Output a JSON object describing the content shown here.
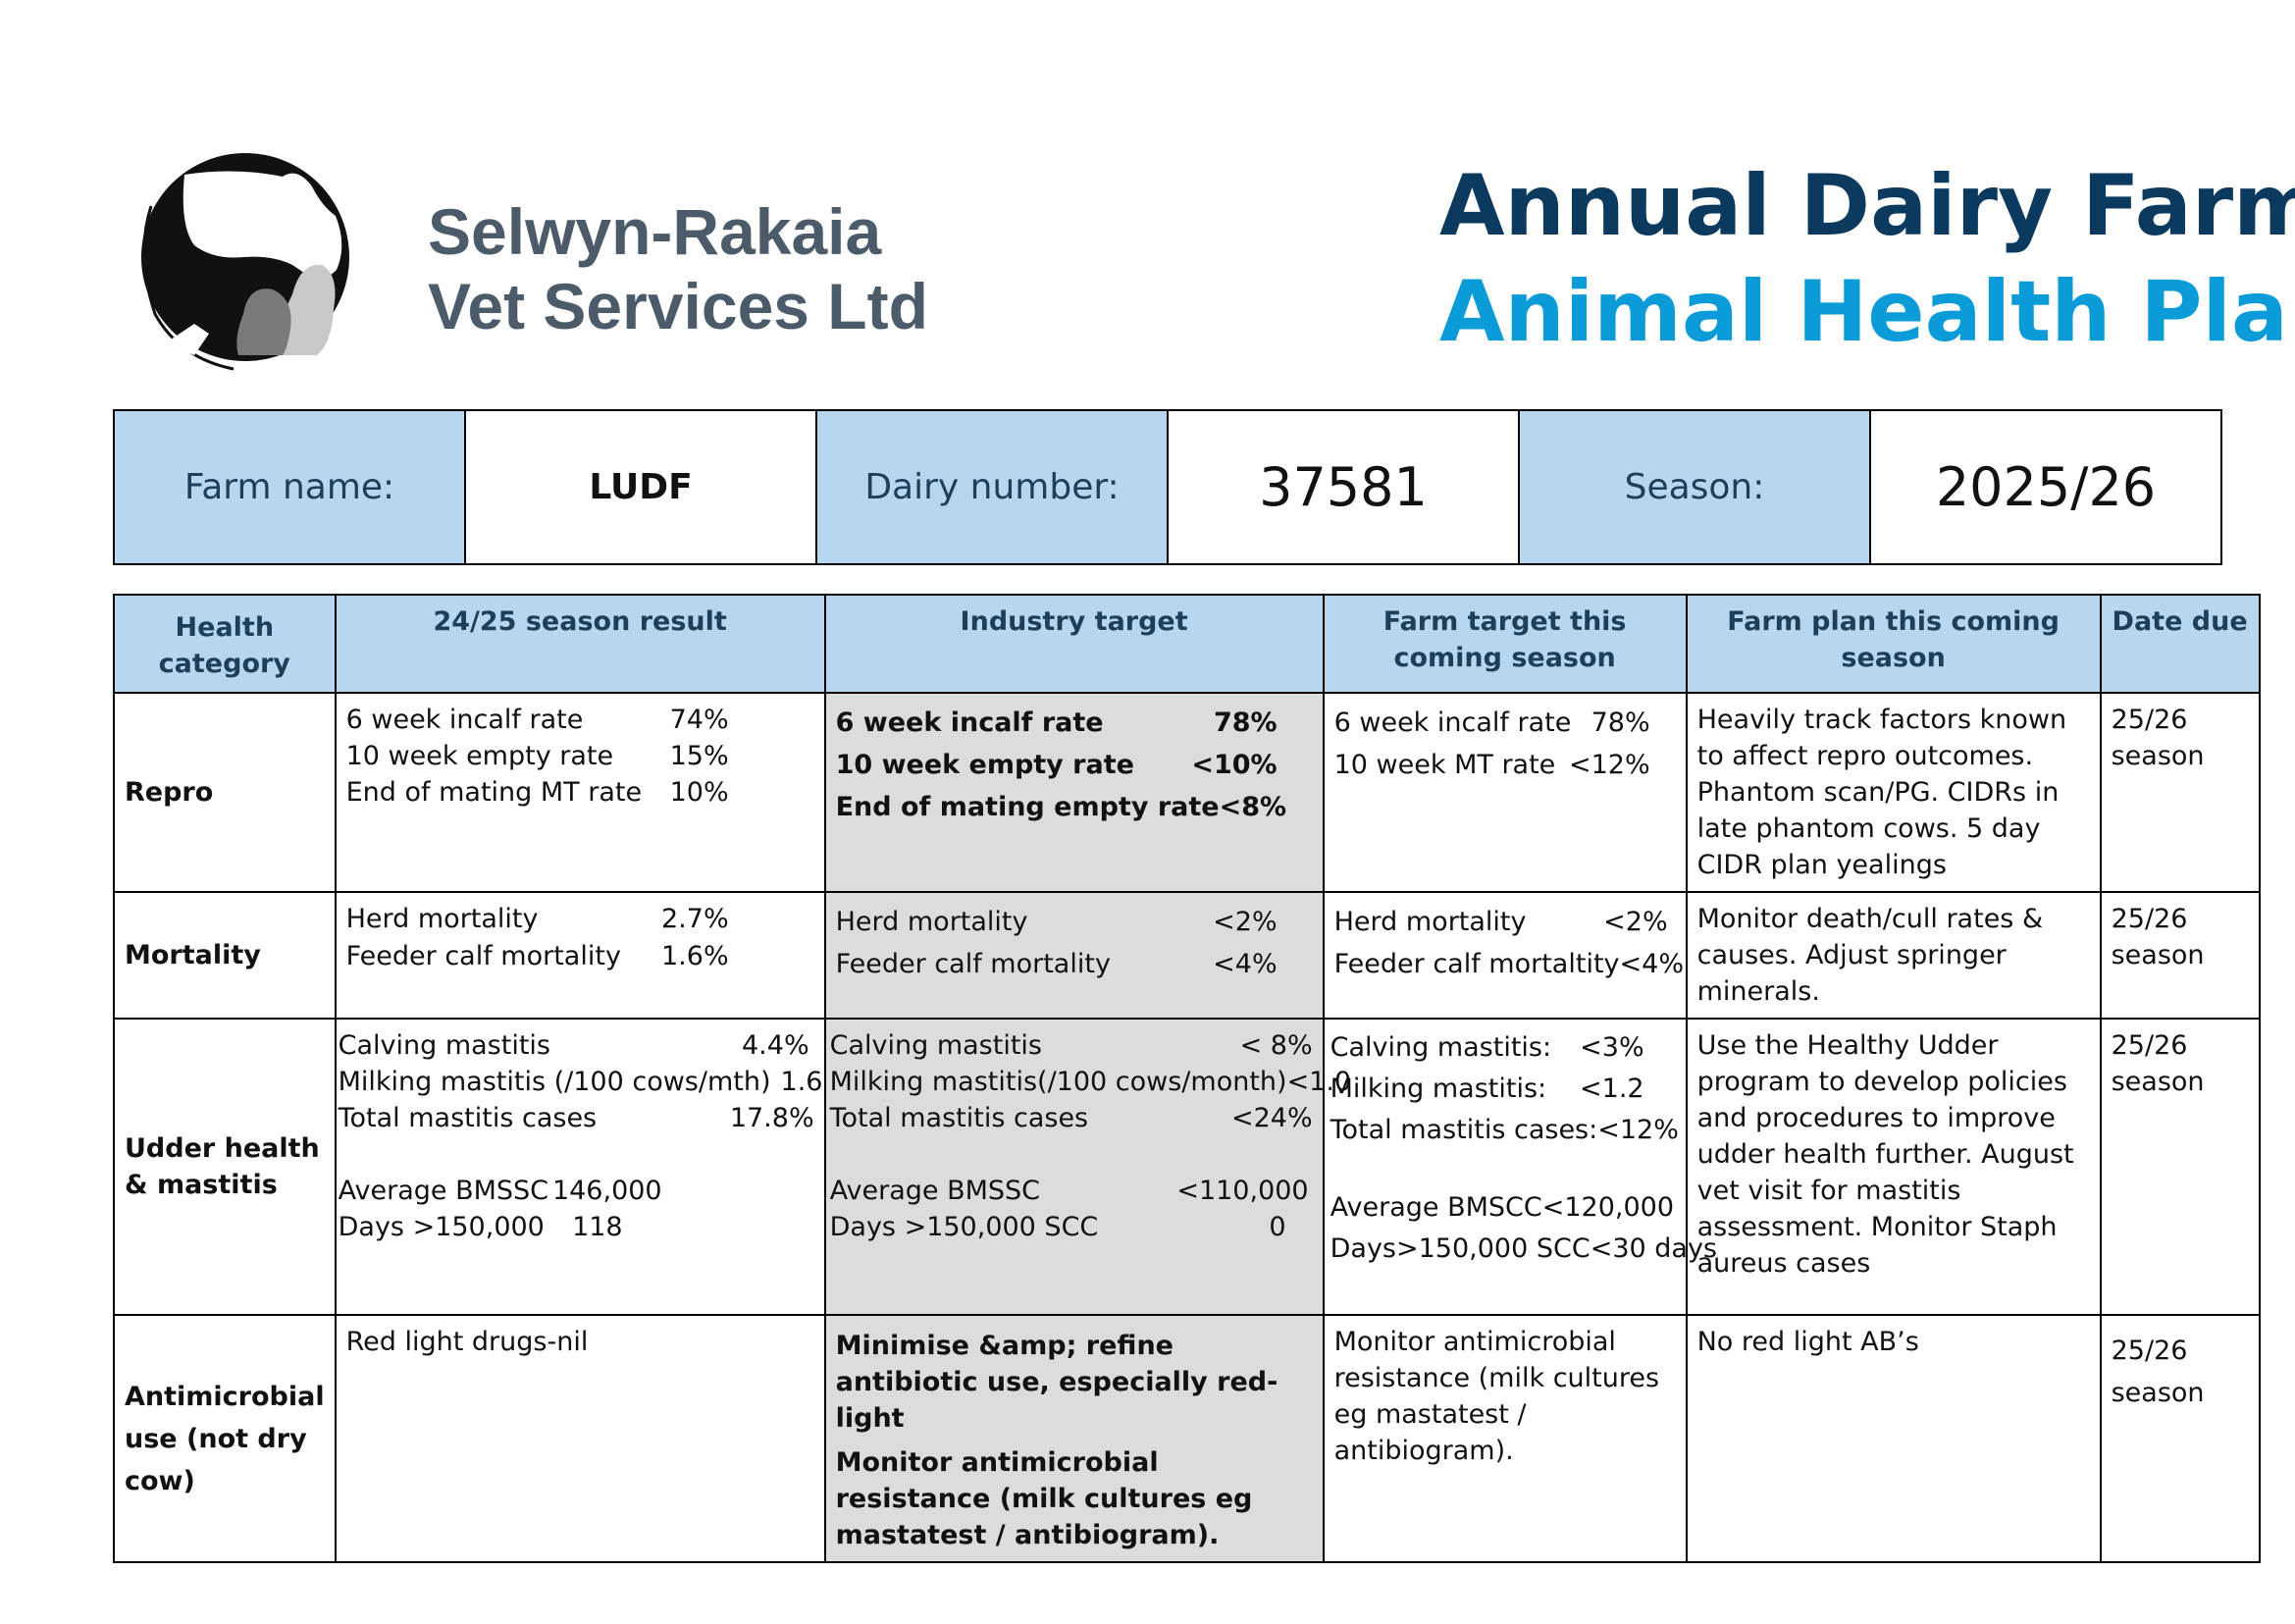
{
  "header": {
    "company_line1": "Selwyn-Rakaia",
    "company_line2": "Vet Services Ltd",
    "title_line1": "Annual Dairy Farm",
    "title_line2": "Animal Health Plan"
  },
  "farm_info": {
    "farm_name_label": "Farm name:",
    "farm_name": "LUDF",
    "dairy_number_label": "Dairy number:",
    "dairy_number": "37581",
    "season_label": "Season:",
    "season": "2025/26"
  },
  "table": {
    "headers": [
      "Health category",
      "24/25 season result",
      "Industry target",
      "Farm target this coming season",
      "Farm plan this coming season",
      "Date due"
    ],
    "rows": [
      {
        "category": "Repro",
        "result": [
          {
            "label": "6 week incalf rate",
            "value": "74%"
          },
          {
            "label": "10 week empty rate",
            "value": "15%"
          },
          {
            "label": "End of mating MT rate",
            "value": "10%"
          }
        ],
        "industry": [
          {
            "label": "6 week incalf rate",
            "value": "78%"
          },
          {
            "label": "10 week empty rate",
            "value": "<10%"
          },
          {
            "label": "End of mating empty rate",
            "value": "<8%"
          }
        ],
        "farm_target": [
          {
            "label": "6 week incalf rate",
            "value": "78%"
          },
          {
            "label": "10 week MT rate",
            "value": "<12%"
          }
        ],
        "plan": "Heavily track factors known to affect repro outcomes. Phantom scan/PG. CIDRs in late phantom cows. 5 day CIDR plan yealings",
        "date_due": "25/26 season"
      },
      {
        "category": "Mortality",
        "result": [
          {
            "label": "Herd mortality",
            "value": "2.7%"
          },
          {
            "label": "Feeder calf mortality",
            "value": "1.6%"
          }
        ],
        "industry": [
          {
            "label": "Herd mortality",
            "value": "<2%"
          },
          {
            "label": "Feeder calf mortality",
            "value": "<4%"
          }
        ],
        "farm_target": [
          {
            "label": "Herd mortality",
            "value": "<2%"
          },
          {
            "label": "Feeder calf mortaltity",
            "value": "<4%"
          }
        ],
        "plan": "Monitor death/cull rates & causes. Adjust springer minerals.",
        "date_due": "25/26 season"
      },
      {
        "category": "Udder health & mastitis",
        "result": [
          {
            "label": "Calving mastitis",
            "value": "4.4%"
          },
          {
            "label": "Milking mastitis (/100 cows/mth)",
            "value": "1.6"
          },
          {
            "label": "Total mastitis cases",
            "value": "17.8%"
          },
          {
            "label": "Average BMSSC",
            "value": "146,000"
          },
          {
            "label": "Days >150,000",
            "value": "118"
          }
        ],
        "industry": [
          {
            "label": "Calving mastitis",
            "value": "< 8%"
          },
          {
            "label": "Milking mastitis(/100 cows/month)",
            "value": "<1.0"
          },
          {
            "label": "Total mastitis cases",
            "value": "<24%"
          },
          {
            "label": "Average BMSSC",
            "value": "<110,000"
          },
          {
            "label": "Days >150,000 SCC",
            "value": "0"
          }
        ],
        "farm_target": [
          {
            "label": "Calving mastitis:",
            "value": "<3%"
          },
          {
            "label": "Milking mastitis:",
            "value": "<1.2"
          },
          {
            "label": "Total mastitis cases:",
            "value": "<12%"
          },
          {
            "label": "Average BMSCC",
            "value": "<120,000"
          },
          {
            "label": "Days>150,000 SCC",
            "value": "<30 days"
          }
        ],
        "plan": "Use the Healthy Udder program to develop policies and procedures to improve udder health further. August vet visit for mastitis assessment. Monitor Staph aureus cases",
        "date_due": "25/26 season"
      },
      {
        "category": "Antimicrobial use (not dry cow)",
        "result_text": "Red light drugs-nil",
        "industry_text1": "Minimise &amp; refine antibiotic use, especially red- light",
        "industry_text2": "Monitor antimicrobial resistance (milk cultures eg mastatest / antibiogram).",
        "farm_target_text": "Monitor antimicrobial resistance (milk cultures eg mastatest / antibiogram).",
        "plan": "No red light AB’s",
        "date_due": "25/26 season"
      }
    ]
  },
  "colors": {
    "header_fill": "#b7d7f1",
    "industry_fill": "#dcdcdc",
    "title_dark": "#0b3a5e",
    "title_light": "#0b9bd8",
    "company": "#4b5b69"
  }
}
